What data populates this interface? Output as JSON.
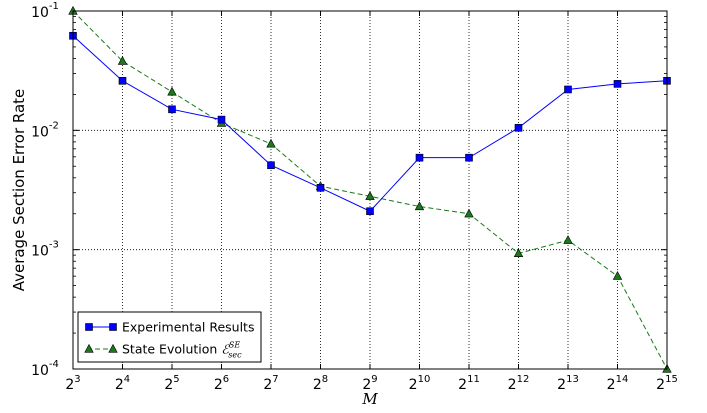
{
  "chart_data": {
    "type": "line",
    "xlabel": "M",
    "ylabel": "Average Section Error Rate",
    "x_scale": "log2",
    "y_scale": "log10",
    "xlim": [
      8,
      32768
    ],
    "ylim": [
      0.0001,
      0.1
    ],
    "grid": true,
    "legend_position": "lower-left",
    "x_ticks": [
      {
        "base": "2",
        "exp": "3"
      },
      {
        "base": "2",
        "exp": "4"
      },
      {
        "base": "2",
        "exp": "5"
      },
      {
        "base": "2",
        "exp": "6"
      },
      {
        "base": "2",
        "exp": "7"
      },
      {
        "base": "2",
        "exp": "8"
      },
      {
        "base": "2",
        "exp": "9"
      },
      {
        "base": "2",
        "exp": "10"
      },
      {
        "base": "2",
        "exp": "11"
      },
      {
        "base": "2",
        "exp": "12"
      },
      {
        "base": "2",
        "exp": "13"
      },
      {
        "base": "2",
        "exp": "14"
      },
      {
        "base": "2",
        "exp": "15"
      }
    ],
    "y_ticks": [
      {
        "value": 0.0001,
        "base": "10",
        "exp": "-4"
      },
      {
        "value": 0.001,
        "base": "10",
        "exp": "-3"
      },
      {
        "value": 0.01,
        "base": "10",
        "exp": "-2"
      },
      {
        "value": 0.1,
        "base": "10",
        "exp": "-1"
      }
    ],
    "series": [
      {
        "name": "Experimental Results",
        "color": "#0000ff",
        "marker": "square",
        "line_style": "solid",
        "x": [
          8,
          16,
          32,
          64,
          128,
          256,
          512,
          1024,
          2048,
          4096,
          8192,
          16384,
          32768
        ],
        "y": [
          0.062,
          0.026,
          0.015,
          0.0123,
          0.0051,
          0.0033,
          0.0021,
          0.0059,
          0.0059,
          0.0105,
          0.022,
          0.0245,
          0.026
        ]
      },
      {
        "name": "State Evolution ",
        "name_math": "ℰ",
        "name_sup": "SE",
        "name_sub": "sec",
        "color": "#1a7a1a",
        "marker": "triangle",
        "line_style": "dashed",
        "x": [
          8,
          16,
          32,
          64,
          128,
          256,
          512,
          1024,
          2048,
          4096,
          8192,
          16384,
          32768
        ],
        "y": [
          0.1,
          0.038,
          0.021,
          0.0115,
          0.0077,
          0.0034,
          0.0028,
          0.0023,
          0.002,
          0.00093,
          0.0012,
          0.0006,
          0.0001
        ]
      }
    ]
  }
}
